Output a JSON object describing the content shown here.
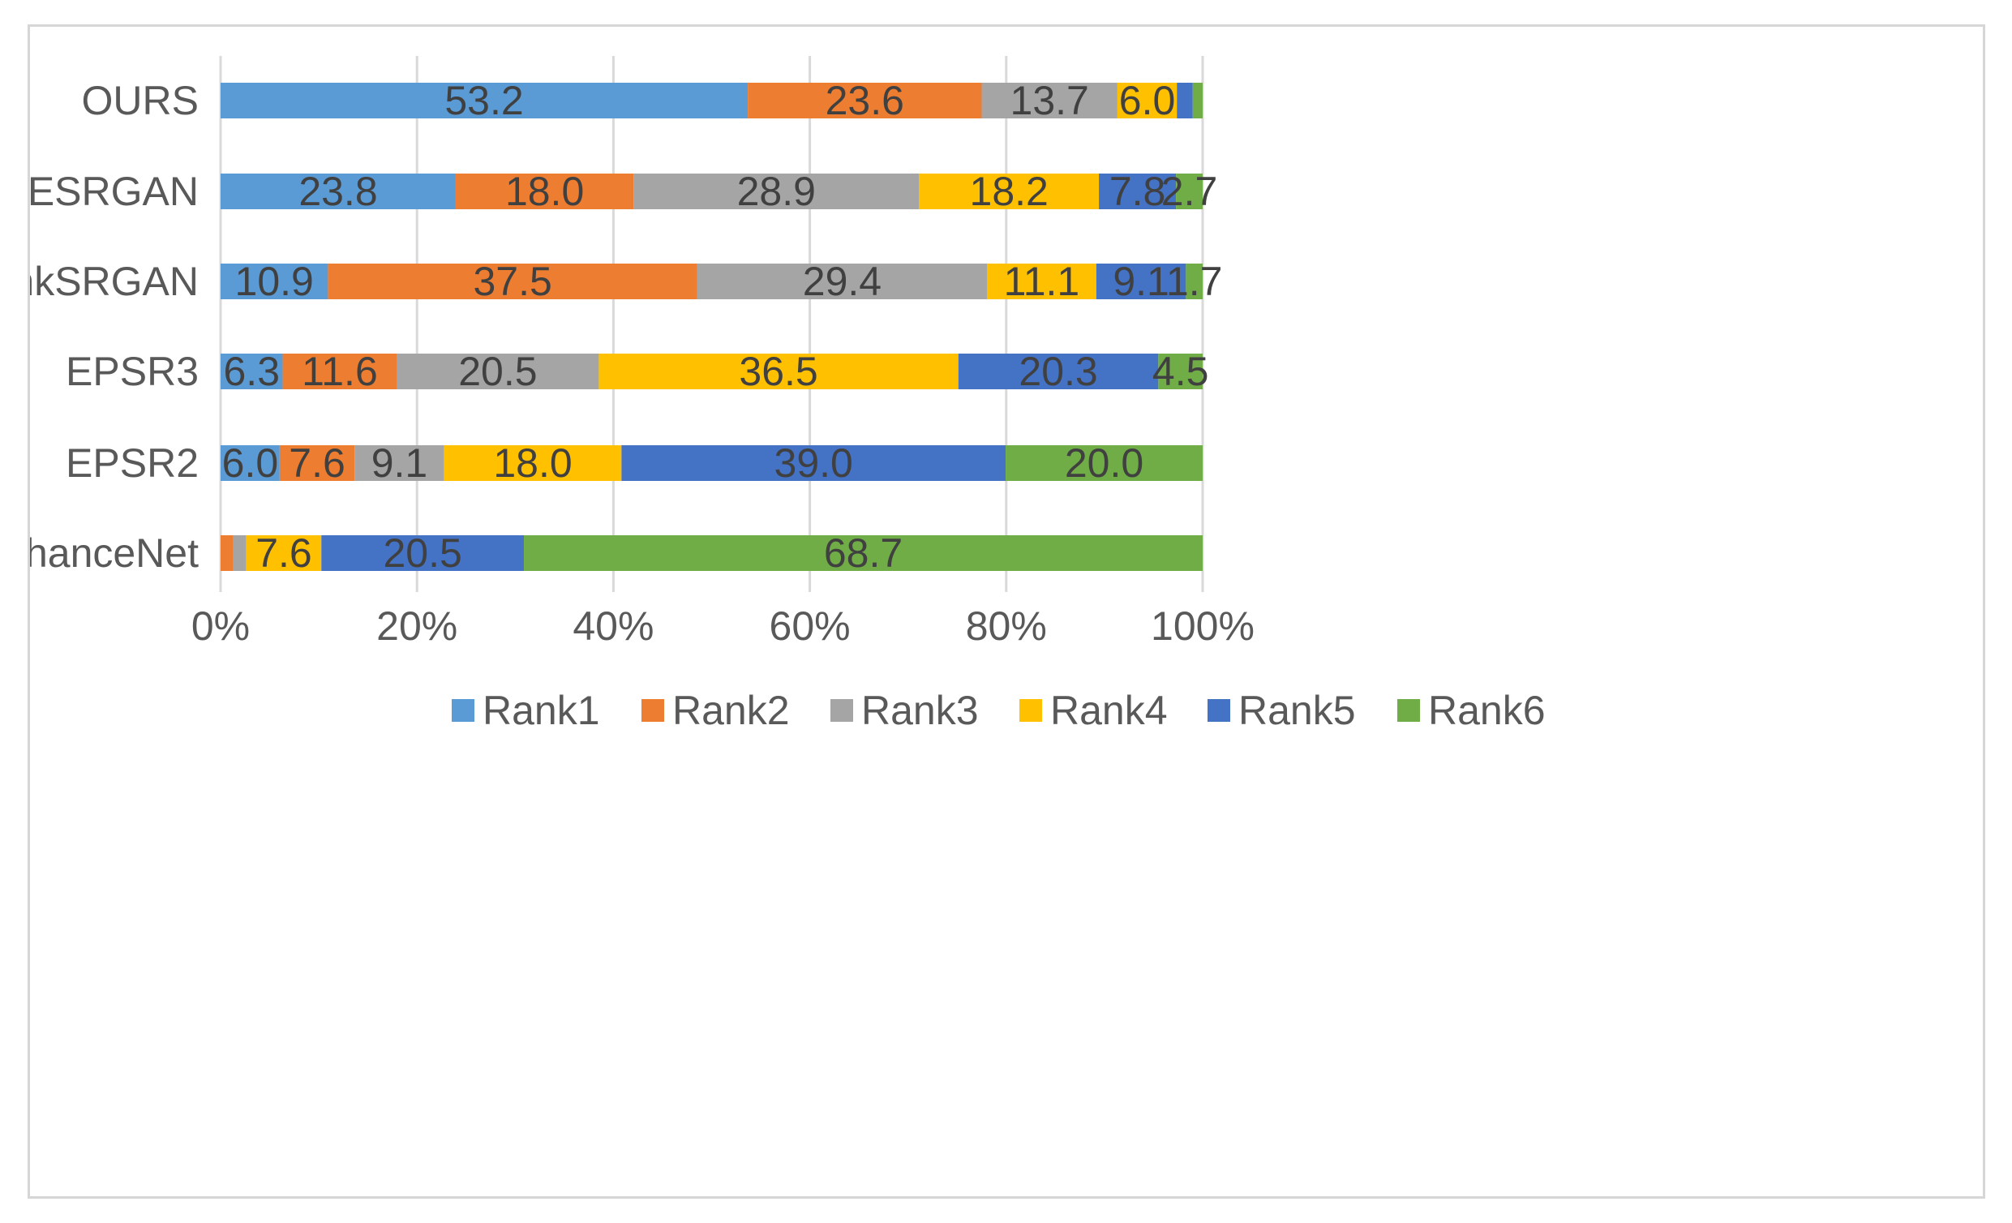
{
  "chart_data": {
    "type": "bar",
    "orientation": "horizontal",
    "stacked": "percent",
    "title": "",
    "xlabel": "",
    "ylabel": "",
    "xlim": [
      0,
      100
    ],
    "x_ticks": [
      "0%",
      "20%",
      "40%",
      "60%",
      "80%",
      "100%"
    ],
    "grid": true,
    "legend_position": "bottom",
    "categories": [
      "OURS",
      "ESRGAN",
      "RankSRGAN",
      "EPSR3",
      "EPSR2",
      "EnhanceNet"
    ],
    "series": [
      {
        "name": "Rank1",
        "color": "#5b9bd5",
        "values": [
          53.2,
          23.8,
          10.9,
          6.3,
          6.0,
          0.0
        ],
        "labels": [
          "53.2",
          "23.8",
          "10.9",
          "6.3",
          "6.0",
          ""
        ]
      },
      {
        "name": "Rank2",
        "color": "#ed7d31",
        "values": [
          23.6,
          18.0,
          37.5,
          11.6,
          7.6,
          1.3
        ],
        "labels": [
          "23.6",
          "18.0",
          "37.5",
          "11.6",
          "7.6",
          ""
        ]
      },
      {
        "name": "Rank3",
        "color": "#a5a5a5",
        "values": [
          13.7,
          28.9,
          29.4,
          20.5,
          9.1,
          1.3
        ],
        "labels": [
          "13.7",
          "28.9",
          "29.4",
          "20.5",
          "9.1",
          ""
        ]
      },
      {
        "name": "Rank4",
        "color": "#ffc000",
        "values": [
          6.0,
          18.2,
          11.1,
          36.5,
          18.0,
          7.6
        ],
        "labels": [
          "6.0",
          "18.2",
          "11.1",
          "36.5",
          "18.0",
          "7.6"
        ]
      },
      {
        "name": "Rank5",
        "color": "#4472c4",
        "values": [
          1.6,
          7.8,
          9.1,
          20.3,
          39.0,
          20.5
        ],
        "labels": [
          "",
          "7.8",
          "9.1",
          "20.3",
          "39.0",
          "20.5"
        ]
      },
      {
        "name": "Rank6",
        "color": "#70ad47",
        "values": [
          1.0,
          2.7,
          1.7,
          4.5,
          20.0,
          68.7
        ],
        "labels": [
          "",
          "2.7",
          "1.7",
          "4.5",
          "20.0",
          "68.7"
        ]
      }
    ]
  }
}
